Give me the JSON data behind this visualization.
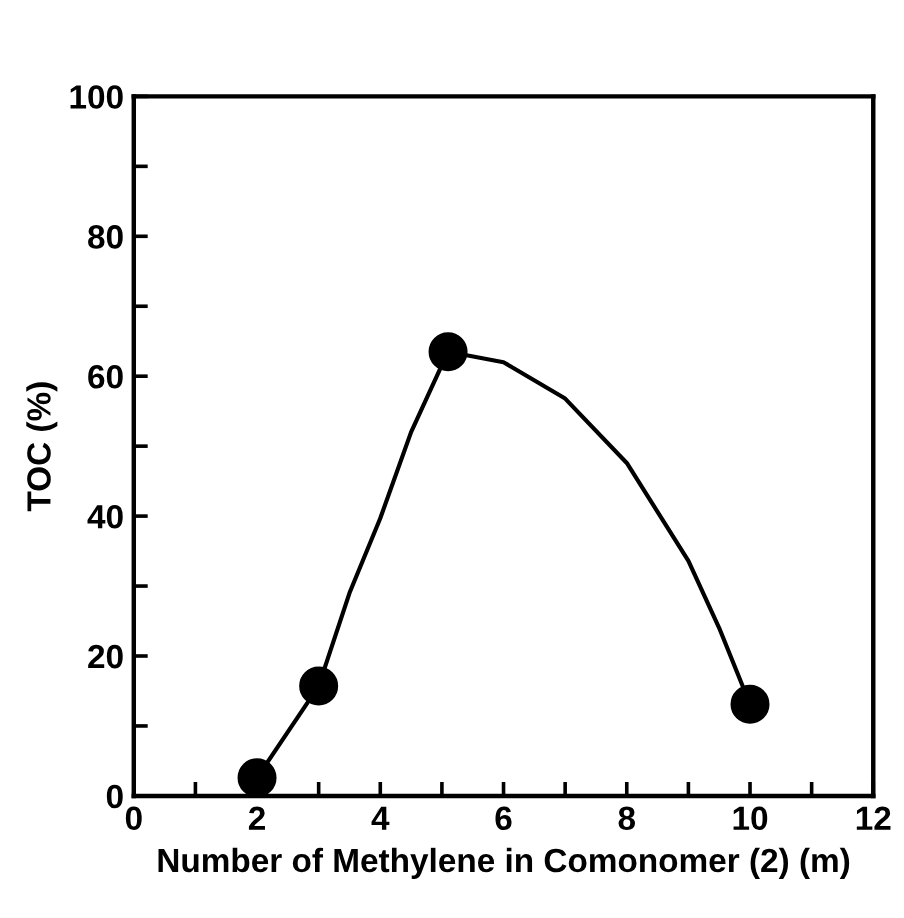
{
  "chart_data": {
    "type": "scatter",
    "xlabel": "Number of Methylene in Comonomer (2) (m)",
    "ylabel": "TOC (%)",
    "xlim": [
      0,
      12
    ],
    "ylim": [
      0,
      100
    ],
    "xticks": [
      0,
      {
        "value": 1,
        "label": null
      },
      2,
      {
        "value": 3,
        "label": null
      },
      4,
      {
        "value": 5,
        "label": null
      },
      6,
      {
        "value": 7,
        "label": null
      },
      8,
      {
        "value": 9,
        "label": null
      },
      10,
      {
        "value": 11,
        "label": null
      },
      12
    ],
    "yticks": [
      0,
      {
        "value": 10,
        "label": null
      },
      20,
      {
        "value": 30,
        "label": null
      },
      40,
      {
        "value": 50,
        "label": null
      },
      60,
      {
        "value": 70,
        "label": null
      },
      80,
      {
        "value": 90,
        "label": null
      },
      100
    ],
    "grid": false,
    "legend": false,
    "series": [
      {
        "type": "line",
        "color": "#000000",
        "marker": "none",
        "x": [
          2,
          3,
          3.5,
          4,
          4.5,
          5.1,
          6,
          7,
          8,
          9,
          9.5,
          10
        ],
        "values": [
          2.6,
          15.7,
          29,
          39.7,
          52,
          63.5,
          62,
          56.8,
          47.6,
          33.6,
          24,
          13.1
        ]
      },
      {
        "color": "#000000",
        "marker": "circle",
        "x": [
          2,
          3,
          5.1,
          10
        ],
        "values": [
          2.6,
          15.7,
          63.5,
          13.1
        ]
      }
    ]
  }
}
